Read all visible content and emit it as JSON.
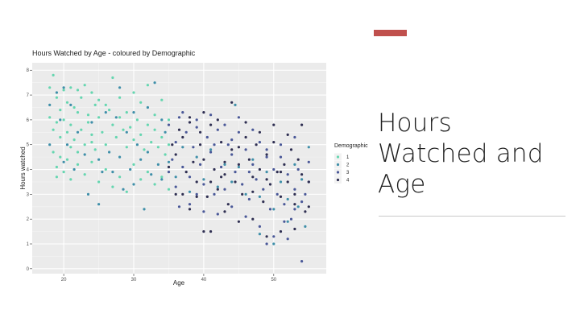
{
  "slide": {
    "title_lines": [
      "Hours",
      "Watched and",
      "Age"
    ],
    "accent_color": "#c0504d"
  },
  "chart_data": {
    "type": "scatter",
    "title": "Hours Watched by Age - coloured by Demographic",
    "xlabel": "Age",
    "ylabel": "Hours watched",
    "xlim": [
      15.5,
      57.5
    ],
    "ylim": [
      -0.2,
      8.3
    ],
    "x_ticks": [
      20,
      30,
      40,
      50
    ],
    "y_ticks": [
      0,
      1,
      2,
      3,
      4,
      5,
      6,
      7,
      8
    ],
    "grid": true,
    "panel_background": "#ebebeb",
    "legend": {
      "title": "Demographic",
      "position": "right"
    },
    "series": [
      {
        "name": "1",
        "color": "#65d6b0",
        "points": [
          [
            18,
            7.3
          ],
          [
            18.5,
            7.8
          ],
          [
            19,
            6.9
          ],
          [
            19.5,
            6.4
          ],
          [
            20,
            7.2
          ],
          [
            20.5,
            6.7
          ],
          [
            21,
            7.3
          ],
          [
            21.5,
            6.5
          ],
          [
            22,
            7.2
          ],
          [
            22.5,
            6.9
          ],
          [
            23,
            7.4
          ],
          [
            23.5,
            6.2
          ],
          [
            24,
            7.1
          ],
          [
            24.5,
            6.6
          ],
          [
            25,
            6.8
          ],
          [
            18,
            6.1
          ],
          [
            18.5,
            5.6
          ],
          [
            19,
            5.9
          ],
          [
            19.5,
            5.3
          ],
          [
            20,
            6.0
          ],
          [
            20.5,
            5.5
          ],
          [
            21,
            5.8
          ],
          [
            21.5,
            5.2
          ],
          [
            22,
            6.3
          ],
          [
            22.5,
            5.6
          ],
          [
            23,
            5.0
          ],
          [
            23.5,
            5.9
          ],
          [
            24,
            5.4
          ],
          [
            24.5,
            4.8
          ],
          [
            25,
            6.1
          ],
          [
            25.5,
            5.5
          ],
          [
            26,
            5.0
          ],
          [
            26.5,
            6.4
          ],
          [
            27,
            5.8
          ],
          [
            27.5,
            5.3
          ],
          [
            28,
            6.1
          ],
          [
            28.5,
            5.6
          ],
          [
            29,
            4.9
          ],
          [
            29.5,
            5.7
          ],
          [
            30,
            5.2
          ],
          [
            30.5,
            6.0
          ],
          [
            31,
            5.4
          ],
          [
            31.5,
            4.8
          ],
          [
            32,
            5.8
          ],
          [
            32.5,
            5.1
          ],
          [
            33,
            5.6
          ],
          [
            33.5,
            4.9
          ],
          [
            34,
            5.3
          ],
          [
            34.5,
            4.6
          ],
          [
            35,
            5.0
          ],
          [
            18.5,
            4.7
          ],
          [
            19,
            4.1
          ],
          [
            19.5,
            4.5
          ],
          [
            20,
            3.9
          ],
          [
            20.5,
            4.4
          ],
          [
            21,
            3.6
          ],
          [
            22,
            4.2
          ],
          [
            23,
            3.8
          ],
          [
            24,
            4.3
          ],
          [
            25,
            3.5
          ],
          [
            26,
            4.0
          ],
          [
            27,
            3.3
          ],
          [
            28,
            3.7
          ],
          [
            29,
            3.1
          ],
          [
            30,
            4.2
          ],
          [
            31,
            3.6
          ],
          [
            32,
            3.9
          ],
          [
            33,
            3.4
          ],
          [
            34,
            3.7
          ],
          [
            35,
            3.2
          ],
          [
            28,
            6.9
          ],
          [
            29,
            6.3
          ],
          [
            30,
            7.1
          ],
          [
            31,
            6.7
          ],
          [
            32,
            7.4
          ],
          [
            33,
            6.2
          ],
          [
            34,
            6.8
          ],
          [
            35,
            6.0
          ],
          [
            27,
            7.7
          ],
          [
            26,
            6.6
          ],
          [
            22,
            4.7
          ],
          [
            24,
            5.1
          ],
          [
            19,
            3.7
          ],
          [
            21,
            4.9
          ]
        ]
      },
      {
        "name": "2",
        "color": "#3f8fa9",
        "points": [
          [
            18,
            6.6
          ],
          [
            19,
            7.1
          ],
          [
            19.5,
            6.0
          ],
          [
            20.5,
            5.0
          ],
          [
            21,
            6.6
          ],
          [
            22,
            5.5
          ],
          [
            23,
            4.6
          ],
          [
            24,
            5.9
          ],
          [
            25,
            4.4
          ],
          [
            25.5,
            3.9
          ],
          [
            26,
            6.3
          ],
          [
            26.5,
            4.7
          ],
          [
            27,
            3.9
          ],
          [
            27.5,
            6.1
          ],
          [
            28,
            4.5
          ],
          [
            28.5,
            3.2
          ],
          [
            29,
            5.5
          ],
          [
            29.5,
            4.0
          ],
          [
            30,
            3.4
          ],
          [
            30.5,
            5.0
          ],
          [
            31,
            4.4
          ],
          [
            31.5,
            2.4
          ],
          [
            32,
            4.7
          ],
          [
            32.5,
            3.8
          ],
          [
            33,
            7.5
          ],
          [
            33.5,
            4.2
          ],
          [
            34,
            3.6
          ],
          [
            34.5,
            5.5
          ],
          [
            35,
            4.3
          ],
          [
            36,
            3.7
          ],
          [
            37,
            4.9
          ],
          [
            38,
            3.1
          ],
          [
            39,
            4.5
          ],
          [
            40,
            3.6
          ],
          [
            41,
            4.8
          ],
          [
            42,
            3.3
          ],
          [
            43,
            4.2
          ],
          [
            44,
            3.5
          ],
          [
            44.5,
            6.6
          ],
          [
            45,
            4.1
          ],
          [
            46,
            3.0
          ],
          [
            47,
            4.4
          ],
          [
            48,
            2.9
          ],
          [
            49,
            3.9
          ],
          [
            50,
            2.4
          ],
          [
            51,
            3.5
          ],
          [
            52,
            2.8
          ],
          [
            53,
            4.2
          ],
          [
            53.5,
            2.5
          ],
          [
            54,
            3.6
          ],
          [
            20,
            7.3
          ],
          [
            21.5,
            4.0
          ],
          [
            23.5,
            3.0
          ],
          [
            25,
            2.6
          ],
          [
            28,
            7.3
          ],
          [
            30,
            6.3
          ],
          [
            32,
            6.5
          ],
          [
            34,
            6.0
          ],
          [
            18,
            5.0
          ],
          [
            20,
            4.3
          ],
          [
            48,
            1.4
          ],
          [
            50,
            1.0
          ],
          [
            52,
            1.9
          ],
          [
            54.5,
            1.7
          ],
          [
            55,
            4.9
          ]
        ]
      },
      {
        "name": "3",
        "color": "#4a5898",
        "points": [
          [
            35,
            5.8
          ],
          [
            35.5,
            4.4
          ],
          [
            36,
            5.1
          ],
          [
            36.5,
            6.1
          ],
          [
            37,
            4.1
          ],
          [
            37.5,
            5.5
          ],
          [
            38,
            3.7
          ],
          [
            38.5,
            4.9
          ],
          [
            39,
            5.7
          ],
          [
            39.5,
            4.2
          ],
          [
            40,
            3.4
          ],
          [
            40.5,
            5.3
          ],
          [
            41,
            4.7
          ],
          [
            41.5,
            3.0
          ],
          [
            42,
            5.6
          ],
          [
            42.5,
            4.1
          ],
          [
            43,
            3.2
          ],
          [
            43.5,
            5.0
          ],
          [
            44,
            4.6
          ],
          [
            44.5,
            3.9
          ],
          [
            45,
            5.5
          ],
          [
            45.5,
            3.4
          ],
          [
            46,
            4.8
          ],
          [
            46.5,
            2.8
          ],
          [
            47,
            4.2
          ],
          [
            47.5,
            3.6
          ],
          [
            48,
            5.1
          ],
          [
            48.5,
            3.2
          ],
          [
            49,
            4.5
          ],
          [
            49.5,
            2.4
          ],
          [
            50,
            4.0
          ],
          [
            50.5,
            3.0
          ],
          [
            51,
            4.5
          ],
          [
            51.5,
            2.6
          ],
          [
            52,
            3.8
          ],
          [
            52.5,
            2.0
          ],
          [
            53,
            3.2
          ],
          [
            53.5,
            4.0
          ],
          [
            54,
            2.7
          ],
          [
            55,
            3.5
          ],
          [
            36,
            3.3
          ],
          [
            38,
            2.6
          ],
          [
            40,
            2.3
          ],
          [
            42,
            2.2
          ],
          [
            44,
            2.5
          ],
          [
            46,
            2.1
          ],
          [
            48,
            1.7
          ],
          [
            50,
            1.3
          ],
          [
            52,
            1.2
          ],
          [
            54,
            0.3
          ],
          [
            37,
            6.3
          ],
          [
            39,
            6.0
          ],
          [
            41,
            6.2
          ],
          [
            43,
            5.8
          ],
          [
            45,
            6.1
          ],
          [
            47,
            5.6
          ],
          [
            49,
            4.8
          ],
          [
            51,
            5.0
          ],
          [
            53,
            5.3
          ],
          [
            55,
            4.3
          ],
          [
            35,
            3.9
          ],
          [
            36.5,
            2.5
          ],
          [
            39,
            3.0
          ],
          [
            41.5,
            5.0
          ],
          [
            44,
            5.2
          ],
          [
            46.5,
            3.9
          ],
          [
            49,
            1.0
          ],
          [
            51.5,
            1.9
          ],
          [
            53,
            2.4
          ],
          [
            54.5,
            3.0
          ]
        ]
      },
      {
        "name": "4",
        "color": "#2f2f52",
        "points": [
          [
            35.5,
            5.0
          ],
          [
            36,
            4.6
          ],
          [
            37,
            5.3
          ],
          [
            37.5,
            3.9
          ],
          [
            38,
            5.9
          ],
          [
            38.5,
            4.3
          ],
          [
            39,
            3.5
          ],
          [
            39.5,
            5.0
          ],
          [
            40,
            4.4
          ],
          [
            40.5,
            2.9
          ],
          [
            41,
            5.8
          ],
          [
            41.5,
            4.0
          ],
          [
            42,
            3.2
          ],
          [
            42.5,
            5.1
          ],
          [
            43,
            4.3
          ],
          [
            43.5,
            2.6
          ],
          [
            44,
            4.8
          ],
          [
            44.5,
            3.5
          ],
          [
            45,
            4.9
          ],
          [
            45.5,
            3.0
          ],
          [
            46,
            5.3
          ],
          [
            46.5,
            4.4
          ],
          [
            47,
            3.7
          ],
          [
            47.5,
            5.0
          ],
          [
            48,
            4.0
          ],
          [
            48.5,
            2.7
          ],
          [
            49,
            4.6
          ],
          [
            49.5,
            3.4
          ],
          [
            50,
            5.1
          ],
          [
            50.5,
            3.9
          ],
          [
            51,
            2.9
          ],
          [
            51.5,
            4.2
          ],
          [
            52,
            3.5
          ],
          [
            52.5,
            4.8
          ],
          [
            53,
            2.6
          ],
          [
            53.5,
            4.4
          ],
          [
            54,
            3.8
          ],
          [
            54.5,
            2.3
          ],
          [
            55,
            3.5
          ],
          [
            38,
            6.1
          ],
          [
            40,
            6.3
          ],
          [
            42,
            6.0
          ],
          [
            44,
            6.7
          ],
          [
            46,
            5.9
          ],
          [
            48,
            5.5
          ],
          [
            50,
            5.8
          ],
          [
            52,
            5.4
          ],
          [
            54,
            5.8
          ],
          [
            36,
            3.0
          ],
          [
            38,
            2.4
          ],
          [
            40,
            1.5
          ],
          [
            41,
            1.5
          ],
          [
            43,
            2.3
          ],
          [
            45,
            1.9
          ],
          [
            47,
            2.0
          ],
          [
            49,
            1.3
          ],
          [
            51,
            1.5
          ],
          [
            53,
            1.6
          ],
          [
            35,
            4.1
          ],
          [
            37,
            3.0
          ],
          [
            39,
            2.9
          ],
          [
            41,
            3.5
          ],
          [
            43,
            3.8
          ],
          [
            45,
            4.2
          ],
          [
            47,
            3.1
          ],
          [
            49,
            3.6
          ],
          [
            51,
            3.9
          ],
          [
            53,
            3.0
          ],
          [
            55,
            2.5
          ],
          [
            36.5,
            5.6
          ],
          [
            39.5,
            5.5
          ],
          [
            42.5,
            3.7
          ]
        ]
      }
    ]
  }
}
